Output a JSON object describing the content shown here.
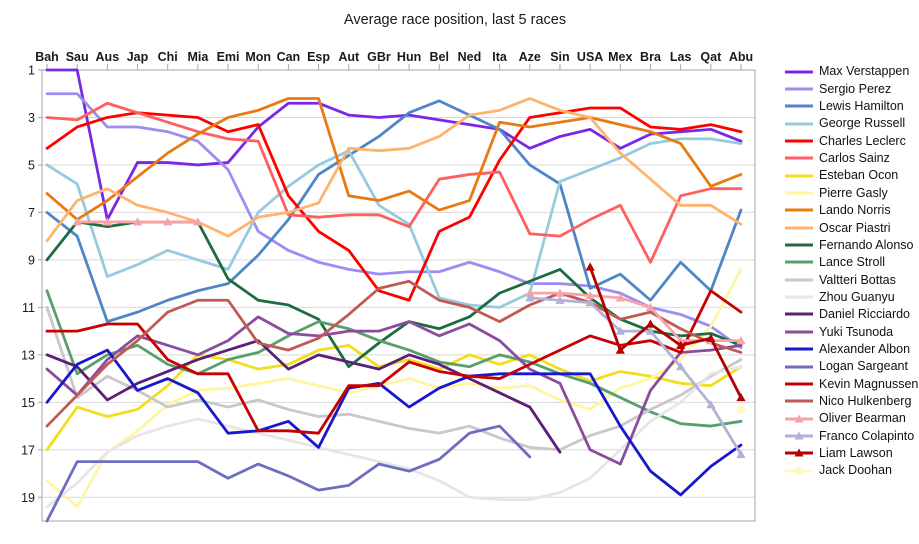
{
  "title": "Average race position, last 5 races",
  "chart_data": {
    "type": "line",
    "title": "Average race position, last 5 races",
    "xlabel": "",
    "ylabel": "",
    "y_axis": {
      "ticks": [
        1,
        3,
        5,
        7,
        9,
        11,
        13,
        15,
        17,
        19
      ],
      "min": 1,
      "max": 20,
      "inverted": true
    },
    "grid": "horizontal",
    "legend_position": "right",
    "categories": [
      "Bah",
      "Sau",
      "Aus",
      "Jap",
      "Chi",
      "Mia",
      "Emi",
      "Mon",
      "Can",
      "Esp",
      "Aut",
      "GBr",
      "Hun",
      "Bel",
      "Ned",
      "Ita",
      "Aze",
      "Sin",
      "USA",
      "Mex",
      "Bra",
      "Las",
      "Qat",
      "Abu"
    ],
    "series": [
      {
        "name": "Max Verstappen",
        "color": "#7A28E8",
        "marker": "none",
        "values": [
          1,
          1,
          7.3,
          4.9,
          4.9,
          5.0,
          4.9,
          3.4,
          2.4,
          2.4,
          2.9,
          3.0,
          2.9,
          3.1,
          3.3,
          3.5,
          4.3,
          3.8,
          3.5,
          4.3,
          3.7,
          3.6,
          3.5,
          4.0
        ]
      },
      {
        "name": "Sergio Perez",
        "color": "#9D8CF2",
        "marker": "none",
        "values": [
          2,
          2,
          3.4,
          3.4,
          3.6,
          4.0,
          5.2,
          7.8,
          8.6,
          9.1,
          9.4,
          9.6,
          9.5,
          9.5,
          9.1,
          9.5,
          10.0,
          10.0,
          10.1,
          10.4,
          11.0,
          11.3,
          11.8,
          12.7
        ]
      },
      {
        "name": "Lewis Hamilton",
        "color": "#4E86C6",
        "marker": "none",
        "values": [
          7,
          8,
          11.6,
          11.2,
          10.7,
          10.3,
          10.0,
          8.8,
          7.3,
          5.4,
          4.6,
          3.8,
          2.8,
          2.3,
          2.9,
          3.5,
          5.0,
          5.8,
          10.2,
          9.6,
          10.7,
          9.1,
          10.3,
          6.9
        ]
      },
      {
        "name": "George Russell",
        "color": "#96CBDE",
        "marker": "none",
        "values": [
          5,
          5.8,
          9.7,
          9.2,
          8.6,
          9.0,
          9.4,
          7.0,
          5.9,
          5.0,
          4.4,
          6.7,
          7.5,
          10.6,
          10.9,
          11.0,
          10.4,
          5.7,
          5.2,
          4.7,
          4.1,
          3.9,
          3.9,
          4.1
        ]
      },
      {
        "name": "Charles Leclerc",
        "color": "#FF0000",
        "marker": "none",
        "values": [
          4.3,
          3.4,
          3.0,
          2.8,
          2.9,
          3.0,
          3.6,
          3.3,
          6.3,
          7.8,
          8.6,
          10.3,
          10.7,
          7.8,
          7.2,
          4.8,
          3.0,
          2.8,
          2.6,
          2.6,
          3.4,
          3.5,
          3.3,
          3.6
        ]
      },
      {
        "name": "Carlos Sainz",
        "color": "#FF5F5F",
        "marker": "none",
        "values": [
          3.0,
          3.1,
          2.4,
          2.8,
          3.2,
          3.6,
          3.9,
          4.0,
          7.1,
          7.2,
          7.1,
          7.1,
          7.6,
          5.6,
          5.4,
          5.3,
          7.9,
          8.0,
          7.3,
          6.7,
          9.1,
          6.3,
          6.0,
          6.0
        ]
      },
      {
        "name": "Esteban Ocon",
        "color": "#F2DE1C",
        "marker": "none",
        "values": [
          17,
          15.2,
          15.6,
          15.3,
          14.3,
          13.0,
          13.2,
          13.6,
          13.4,
          12.8,
          12.6,
          13.5,
          13.2,
          13.6,
          13.0,
          13.4,
          13.0,
          13.6,
          14.1,
          13.7,
          13.9,
          14.2,
          14.3,
          13.5
        ]
      },
      {
        "name": "Pierre Gasly",
        "color": "#FFF6A3",
        "marker": "none",
        "values": [
          18.3,
          19.4,
          17.1,
          16.2,
          15.1,
          14.5,
          14.4,
          14.2,
          14.0,
          14.3,
          14.6,
          14.3,
          14.0,
          14.4,
          14.2,
          14.4,
          14.3,
          14.9,
          15.3,
          14.4,
          14.0,
          13.2,
          11.8,
          9.4
        ]
      },
      {
        "name": "Lando Norris",
        "color": "#E87A12",
        "marker": "none",
        "values": [
          6.2,
          7.3,
          6.5,
          5.5,
          4.5,
          3.7,
          3.0,
          2.7,
          2.2,
          2.2,
          6.3,
          6.5,
          6.1,
          6.9,
          6.5,
          3.2,
          3.4,
          3.2,
          3.0,
          3.3,
          3.6,
          4.1,
          5.9,
          5.4
        ]
      },
      {
        "name": "Oscar Piastri",
        "color": "#FFB36E",
        "marker": "none",
        "values": [
          8.2,
          6.5,
          6.0,
          6.7,
          7.0,
          7.4,
          8.0,
          7.2,
          7.0,
          6.6,
          4.3,
          4.4,
          4.3,
          3.8,
          2.9,
          2.7,
          2.2,
          2.7,
          3.0,
          4.5,
          5.6,
          6.7,
          6.7,
          7.5
        ]
      },
      {
        "name": "Fernando Alonso",
        "color": "#1E6B42",
        "marker": "none",
        "values": [
          9.0,
          7.4,
          7.6,
          7.4,
          7.4,
          7.4,
          9.8,
          10.7,
          10.9,
          11.5,
          13.5,
          12.5,
          11.6,
          11.9,
          11.4,
          10.4,
          9.9,
          9.4,
          10.6,
          11.5,
          12.0,
          12.2,
          12.1,
          12.6
        ]
      },
      {
        "name": "Lance Stroll",
        "color": "#57A06E",
        "marker": "none",
        "values": [
          10.3,
          13.8,
          13.0,
          12.6,
          13.4,
          13.8,
          13.2,
          12.9,
          12.2,
          11.6,
          11.9,
          12.4,
          12.8,
          13.3,
          13.5,
          13.0,
          13.3,
          13.8,
          14.2,
          14.8,
          15.4,
          15.9,
          16.0,
          15.8
        ]
      },
      {
        "name": "Valtteri Bottas",
        "color": "#C8C8C8",
        "marker": "none",
        "values": [
          11.0,
          14.8,
          13.9,
          14.5,
          15.2,
          14.9,
          15.2,
          14.9,
          15.3,
          15.6,
          15.5,
          15.8,
          16.1,
          16.3,
          16.0,
          16.5,
          16.9,
          17.0,
          16.4,
          16.0,
          15.3,
          14.7,
          13.9,
          13.2
        ]
      },
      {
        "name": "Zhou Guanyu",
        "color": "#E6E6E6",
        "marker": "none",
        "values": [
          19.4,
          18.4,
          17.1,
          16.4,
          16.0,
          15.7,
          16.0,
          16.3,
          16.6,
          16.9,
          17.2,
          17.5,
          17.8,
          18.3,
          19.0,
          19.1,
          19.1,
          18.8,
          18.2,
          17.0,
          15.8,
          15.0,
          13.8,
          13.5
        ]
      },
      {
        "name": "Daniel Ricciardo",
        "color": "#5B1F78",
        "marker": "none",
        "values": [
          13.0,
          13.5,
          14.9,
          14.2,
          13.7,
          13.2,
          12.8,
          12.4,
          13.6,
          13.0,
          13.3,
          13.6,
          13.0,
          13.4,
          14.0,
          14.6,
          15.2,
          17.1,
          null,
          null,
          null,
          null,
          null,
          null
        ]
      },
      {
        "name": "Yuki Tsunoda",
        "color": "#8B4C9E",
        "marker": "none",
        "values": [
          13.6,
          14.7,
          13.2,
          12.2,
          12.6,
          13.0,
          12.4,
          11.4,
          12.1,
          12.2,
          12.0,
          12.0,
          11.6,
          12.2,
          11.7,
          12.4,
          13.6,
          14.2,
          17.0,
          17.6,
          14.5,
          12.9,
          12.8,
          12.6
        ]
      },
      {
        "name": "Alexander Albon",
        "color": "#1717CB",
        "marker": "none",
        "values": [
          15.0,
          13.4,
          12.8,
          14.5,
          14.0,
          14.6,
          16.3,
          16.2,
          15.8,
          16.9,
          14.4,
          14.2,
          15.2,
          14.4,
          13.9,
          13.8,
          13.8,
          13.8,
          13.8,
          16.0,
          17.9,
          18.9,
          17.7,
          16.8
        ]
      },
      {
        "name": "Logan Sargeant",
        "color": "#6E6EC0",
        "marker": "none",
        "values": [
          20.0,
          17.5,
          17.5,
          17.5,
          17.5,
          17.5,
          18.2,
          17.6,
          18.1,
          18.7,
          18.5,
          17.6,
          17.9,
          17.4,
          16.3,
          16.0,
          17.3,
          null,
          null,
          null,
          null,
          null,
          null,
          null
        ]
      },
      {
        "name": "Kevin Magnussen",
        "color": "#C80000",
        "marker": "none",
        "values": [
          12.0,
          12.0,
          11.7,
          11.7,
          13.2,
          13.8,
          13.8,
          16.2,
          16.2,
          16.3,
          14.3,
          14.3,
          13.3,
          13.7,
          13.9,
          14.0,
          13.4,
          12.8,
          12.2,
          12.6,
          12.4,
          12.9,
          10.3,
          11.2
        ]
      },
      {
        "name": "Nico Hulkenberg",
        "color": "#C05A52",
        "marker": "none",
        "values": [
          16.0,
          14.7,
          13.4,
          12.4,
          11.2,
          10.7,
          10.7,
          12.5,
          12.8,
          12.3,
          11.3,
          10.2,
          9.9,
          10.7,
          11.0,
          11.6,
          10.9,
          10.4,
          10.8,
          11.5,
          11.2,
          11.9,
          12.5,
          12.9
        ]
      },
      {
        "name": "Oliver Bearman",
        "color": "#F7A3A8",
        "marker": "triangle",
        "values": [
          null,
          7.4,
          7.4,
          7.4,
          7.4,
          7.4,
          null,
          null,
          null,
          null,
          null,
          null,
          null,
          null,
          null,
          null,
          10.4,
          10.4,
          10.5,
          10.6,
          11.0,
          12.4,
          12.4,
          12.4
        ]
      },
      {
        "name": "Franco Colapinto",
        "color": "#B2B2D8",
        "marker": "triangle",
        "values": [
          null,
          null,
          null,
          null,
          null,
          null,
          null,
          null,
          null,
          null,
          null,
          null,
          null,
          null,
          null,
          null,
          10.6,
          10.7,
          10.8,
          12.0,
          12.0,
          13.5,
          15.1,
          17.2
        ]
      },
      {
        "name": "Liam Lawson",
        "color": "#B40000",
        "marker": "triangle",
        "values": [
          null,
          null,
          null,
          null,
          null,
          null,
          null,
          null,
          null,
          null,
          null,
          null,
          null,
          null,
          null,
          null,
          null,
          null,
          9.3,
          12.8,
          11.7,
          12.6,
          12.3,
          14.8
        ]
      },
      {
        "name": "Jack Doohan",
        "color": "#FDF9C4",
        "marker": "circle",
        "values": [
          null,
          null,
          null,
          null,
          null,
          null,
          null,
          null,
          null,
          null,
          null,
          null,
          null,
          null,
          null,
          null,
          null,
          null,
          null,
          null,
          null,
          null,
          null,
          15.3
        ]
      }
    ]
  }
}
